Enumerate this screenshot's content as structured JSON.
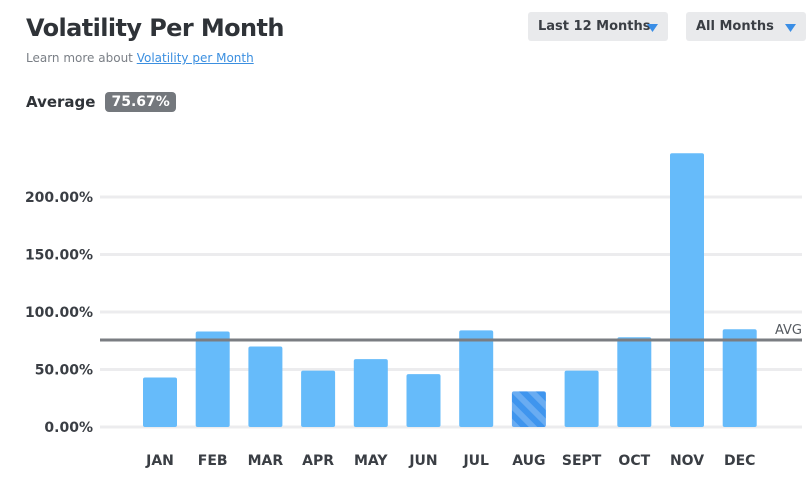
{
  "header": {
    "title": "Volatility Per Month",
    "learn_prefix": "Learn more about ",
    "learn_link": "Volatility per Month"
  },
  "controls": {
    "range": "Last 12 Months",
    "months": "All Months"
  },
  "average": {
    "label": "Average",
    "value": "75.67%"
  },
  "icons": {
    "dropdown_caret": "triangle-down-icon"
  },
  "colors": {
    "bar": "#66bbfa",
    "bar_highlight": "#3f95ee",
    "avg_line": "#7a7d82",
    "grid": "#ececee",
    "caret": "#3a8ee6"
  },
  "chart_data": {
    "type": "bar",
    "categories": [
      "JAN",
      "FEB",
      "MAR",
      "APR",
      "MAY",
      "JUN",
      "JUL",
      "AUG",
      "SEPT",
      "OCT",
      "NOV",
      "DEC"
    ],
    "values": [
      43,
      83,
      70,
      49,
      59,
      46,
      84,
      31,
      49,
      78,
      238,
      85
    ],
    "highlight_category": "AUG",
    "average": 75.67,
    "average_label": "AVG",
    "ylim": [
      0,
      250
    ],
    "yticks": [
      0,
      50,
      100,
      150,
      200
    ],
    "ytick_labels": [
      "0.00%",
      "50.00%",
      "100.00%",
      "150.00%",
      "200.00%"
    ],
    "grid": true,
    "xlabel": "",
    "ylabel": ""
  }
}
